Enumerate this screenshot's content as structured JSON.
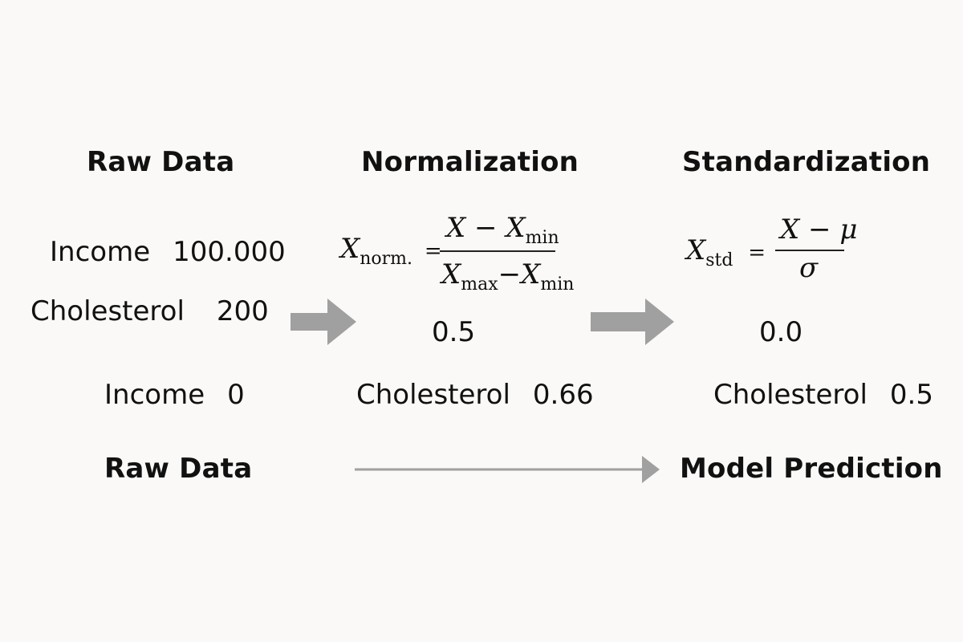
{
  "columns": {
    "raw": {
      "title": "Raw Data"
    },
    "normalization": {
      "title": "Normalization"
    },
    "standardization": {
      "title": "Standardization"
    }
  },
  "raw_rows": [
    {
      "label": "Income",
      "value": "100.000"
    },
    {
      "label": "Cholesterol",
      "value": "200"
    }
  ],
  "normalization": {
    "formula": {
      "lhs_var": "X",
      "lhs_sub": "norm.",
      "equals": "=",
      "num_a": "X",
      "num_op": "−",
      "num_b": "X",
      "num_b_sub": "min",
      "den_a": "X",
      "den_a_sub": "max",
      "den_op": "−",
      "den_b": "X",
      "den_b_sub": "min"
    },
    "value": "0.5"
  },
  "standardization": {
    "formula": {
      "lhs_var": "X",
      "lhs_sub": "std",
      "equals": "=",
      "num_a": "X",
      "num_op": "−",
      "num_b": "μ",
      "den": "σ"
    },
    "value": "0.0"
  },
  "bottom_rows": {
    "raw": {
      "label": "Income",
      "value": "0"
    },
    "normalization": {
      "label": "Cholesterol",
      "value": "0.66"
    },
    "standardization": {
      "label": "Cholesterol",
      "value": "0.5"
    }
  },
  "pipeline": {
    "start": "Raw Data",
    "end": "Model Prediction"
  },
  "colors": {
    "arrow": "#a0a0a0",
    "text": "#111111",
    "background": "#faf9f7"
  }
}
